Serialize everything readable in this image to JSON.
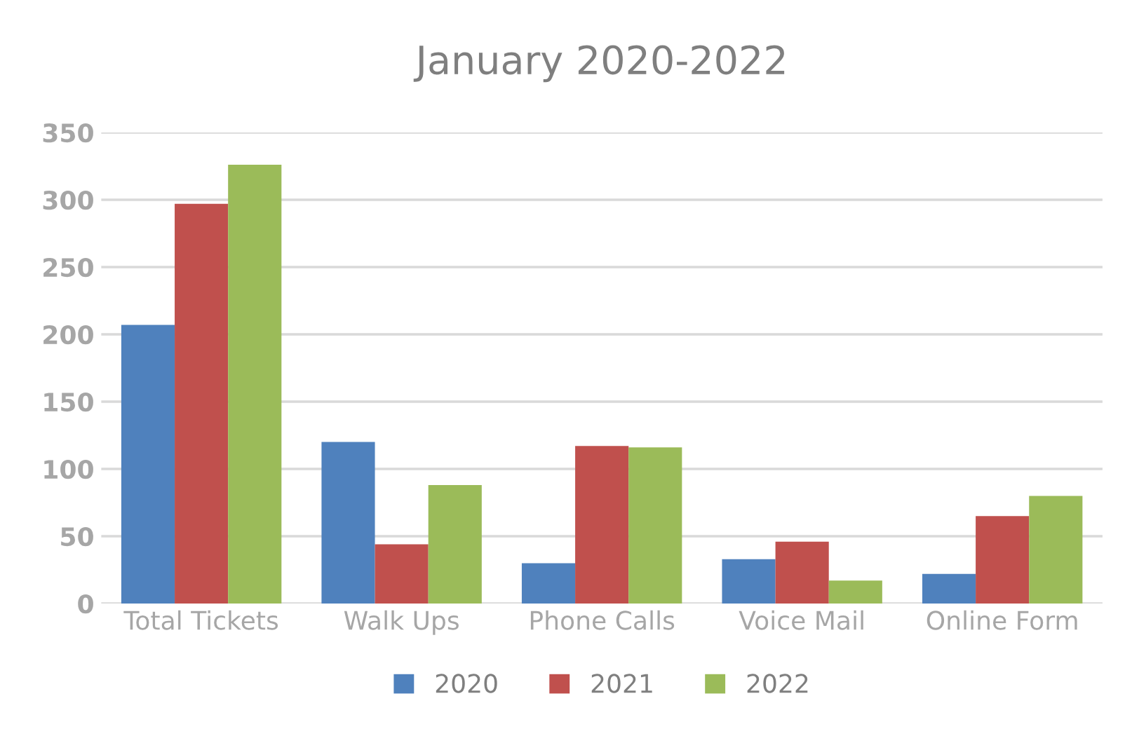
{
  "chart_data": {
    "type": "bar",
    "title": "January 2020-2022",
    "categories": [
      "Total Tickets",
      "Walk Ups",
      "Phone Calls",
      "Voice Mail",
      "Online Form"
    ],
    "series": [
      {
        "name": "2020",
        "color": "#4f81bd",
        "values": [
          207,
          120,
          30,
          33,
          22
        ]
      },
      {
        "name": "2021",
        "color": "#c0504d",
        "values": [
          297,
          44,
          117,
          46,
          65
        ]
      },
      {
        "name": "2022",
        "color": "#9bbb59",
        "values": [
          326,
          88,
          116,
          17,
          80
        ]
      }
    ],
    "ylim": [
      0,
      350
    ],
    "yticks": [
      0,
      50,
      100,
      150,
      200,
      250,
      300,
      350
    ],
    "grid": "y",
    "legend": "bottom"
  }
}
